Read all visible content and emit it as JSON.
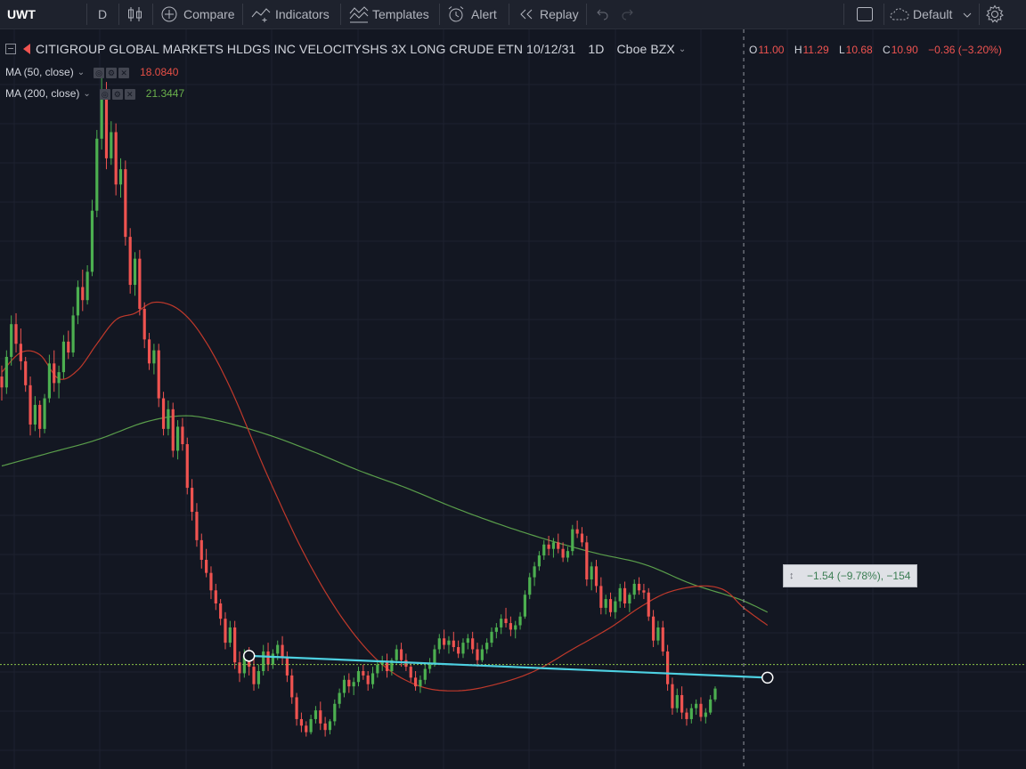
{
  "toolbar": {
    "symbol": "UWT",
    "interval": "D",
    "compare": "Compare",
    "indicators": "Indicators",
    "templates": "Templates",
    "alert": "Alert",
    "replay": "Replay",
    "layout_name": "Default"
  },
  "legend": {
    "title": "CITIGROUP GLOBAL MARKETS HLDGS INC VELOCITYSHS 3X LONG CRUDE ETN 10/12/31",
    "interval": "1D",
    "exchange": "Cboe BZX",
    "ohlc": {
      "o_label": "O",
      "o": "11.00",
      "h_label": "H",
      "h": "11.29",
      "l_label": "L",
      "l": "10.68",
      "c_label": "C",
      "c": "10.90",
      "change": "−0.36 (−3.20%)"
    },
    "ma50": {
      "label": "MA (50, close)",
      "value": "18.0840",
      "color": "#e84f46"
    },
    "ma200": {
      "label": "MA (200, close)",
      "value": "21.3447",
      "color": "#6ab04c"
    }
  },
  "measure": {
    "text": "−1.54 (−9.78%), −154"
  },
  "colors": {
    "up": "#26a69a",
    "up_bright": "#4caf50",
    "down": "#ef5350",
    "trendline": "#4dd0e1",
    "ma50": "#c0392b",
    "ma200": "#5a9e4b",
    "background": "#131722",
    "grid": "#1e2230"
  },
  "chart_data": {
    "type": "candlestick",
    "price_range": [
      7.5,
      38.5
    ],
    "current_price": 10.9,
    "candles": [
      [
        24.1,
        24.6,
        23.0,
        23.6
      ],
      [
        23.6,
        25.3,
        23.3,
        25.0
      ],
      [
        25.0,
        26.9,
        24.6,
        26.5
      ],
      [
        26.5,
        27.0,
        25.2,
        25.6
      ],
      [
        25.6,
        26.3,
        24.4,
        24.8
      ],
      [
        24.8,
        25.0,
        23.4,
        23.7
      ],
      [
        23.7,
        24.1,
        21.4,
        21.9
      ],
      [
        21.9,
        23.2,
        21.6,
        22.8
      ],
      [
        22.8,
        23.0,
        21.3,
        21.7
      ],
      [
        21.7,
        23.3,
        21.5,
        23.1
      ],
      [
        23.1,
        25.1,
        22.9,
        24.7
      ],
      [
        24.7,
        25.3,
        23.4,
        23.8
      ],
      [
        23.8,
        24.6,
        23.1,
        24.3
      ],
      [
        24.3,
        26.0,
        24.0,
        25.7
      ],
      [
        25.7,
        26.2,
        24.9,
        25.2
      ],
      [
        25.2,
        27.3,
        25.0,
        26.9
      ],
      [
        26.9,
        28.5,
        26.5,
        28.2
      ],
      [
        28.2,
        29.0,
        27.1,
        27.6
      ],
      [
        27.6,
        29.2,
        27.4,
        28.9
      ],
      [
        28.9,
        32.2,
        28.7,
        31.7
      ],
      [
        31.7,
        35.4,
        31.4,
        35.0
      ],
      [
        35.0,
        38.0,
        34.5,
        37.2
      ],
      [
        37.2,
        37.6,
        33.6,
        34.1
      ],
      [
        34.1,
        35.8,
        33.8,
        35.3
      ],
      [
        35.3,
        35.7,
        32.4,
        32.9
      ],
      [
        32.9,
        34.1,
        32.3,
        33.6
      ],
      [
        33.6,
        34.0,
        30.1,
        30.5
      ],
      [
        30.5,
        30.9,
        27.9,
        28.3
      ],
      [
        28.3,
        29.8,
        27.8,
        29.5
      ],
      [
        29.5,
        29.9,
        26.9,
        27.2
      ],
      [
        27.2,
        27.5,
        25.4,
        25.8
      ],
      [
        25.8,
        26.1,
        24.4,
        24.7
      ],
      [
        24.7,
        25.6,
        24.2,
        25.3
      ],
      [
        25.3,
        25.6,
        22.7,
        23.1
      ],
      [
        23.1,
        23.4,
        21.4,
        21.7
      ],
      [
        21.7,
        23.0,
        21.4,
        22.6
      ],
      [
        22.6,
        22.9,
        20.4,
        20.7
      ],
      [
        20.7,
        22.1,
        20.3,
        21.8
      ],
      [
        21.8,
        22.2,
        20.7,
        21.0
      ],
      [
        21.0,
        21.3,
        18.7,
        19.0
      ],
      [
        19.0,
        19.4,
        17.5,
        17.9
      ],
      [
        17.9,
        18.3,
        16.3,
        16.6
      ],
      [
        16.6,
        16.9,
        15.3,
        15.7
      ],
      [
        15.7,
        16.2,
        14.9,
        15.1
      ],
      [
        15.1,
        15.4,
        13.9,
        14.3
      ],
      [
        14.3,
        14.6,
        13.4,
        13.7
      ],
      [
        13.7,
        13.9,
        12.7,
        13.0
      ],
      [
        13.0,
        13.3,
        11.6,
        11.9
      ],
      [
        11.9,
        12.9,
        11.7,
        12.6
      ],
      [
        12.6,
        12.9,
        10.7,
        11.0
      ],
      [
        11.0,
        11.5,
        10.1,
        10.5
      ],
      [
        10.5,
        11.6,
        10.3,
        11.3
      ],
      [
        11.3,
        11.7,
        10.4,
        10.8
      ],
      [
        10.8,
        11.2,
        9.7,
        10.0
      ],
      [
        10.0,
        10.9,
        9.8,
        10.6
      ],
      [
        10.6,
        11.8,
        10.4,
        11.5
      ],
      [
        11.5,
        11.9,
        10.6,
        10.9
      ],
      [
        10.9,
        11.6,
        10.7,
        11.4
      ],
      [
        11.4,
        12.0,
        11.1,
        11.8
      ],
      [
        11.8,
        12.2,
        10.9,
        11.2
      ],
      [
        11.2,
        11.5,
        10.1,
        10.4
      ],
      [
        10.4,
        10.7,
        9.1,
        9.4
      ],
      [
        9.4,
        9.6,
        8.1,
        8.4
      ],
      [
        8.4,
        8.7,
        7.8,
        8.1
      ],
      [
        8.1,
        8.3,
        7.6,
        7.8
      ],
      [
        7.8,
        8.6,
        7.7,
        8.4
      ],
      [
        8.4,
        9.0,
        8.2,
        8.8
      ],
      [
        8.8,
        9.2,
        7.9,
        8.2
      ],
      [
        8.2,
        8.5,
        7.6,
        7.9
      ],
      [
        7.9,
        8.4,
        7.7,
        8.3
      ],
      [
        8.3,
        9.3,
        8.1,
        9.1
      ],
      [
        9.1,
        9.8,
        8.9,
        9.6
      ],
      [
        9.6,
        10.4,
        9.4,
        10.2
      ],
      [
        10.2,
        10.5,
        9.6,
        9.9
      ],
      [
        9.9,
        10.3,
        9.5,
        10.1
      ],
      [
        10.1,
        10.8,
        9.9,
        10.6
      ],
      [
        10.6,
        10.9,
        10.2,
        10.4
      ],
      [
        10.4,
        10.6,
        9.7,
        10.0
      ],
      [
        10.0,
        10.8,
        9.8,
        10.5
      ],
      [
        10.5,
        11.1,
        10.3,
        10.9
      ],
      [
        10.9,
        11.3,
        10.6,
        11.0
      ],
      [
        11.0,
        11.4,
        10.3,
        10.6
      ],
      [
        10.6,
        11.2,
        10.4,
        11.1
      ],
      [
        11.1,
        11.8,
        10.9,
        11.6
      ],
      [
        11.6,
        11.9,
        10.8,
        11.1
      ],
      [
        11.1,
        11.4,
        10.6,
        10.8
      ],
      [
        10.8,
        11.0,
        10.1,
        10.3
      ],
      [
        10.3,
        10.6,
        9.7,
        9.9
      ],
      [
        9.9,
        10.4,
        9.6,
        10.2
      ],
      [
        10.2,
        10.9,
        10.0,
        10.7
      ],
      [
        10.7,
        11.2,
        10.5,
        10.9
      ],
      [
        10.9,
        11.8,
        10.8,
        11.6
      ],
      [
        11.6,
        12.3,
        11.4,
        12.1
      ],
      [
        12.1,
        12.5,
        11.6,
        11.8
      ],
      [
        11.8,
        12.2,
        11.4,
        12.0
      ],
      [
        12.0,
        12.4,
        11.5,
        11.7
      ],
      [
        11.7,
        12.0,
        11.2,
        11.4
      ],
      [
        11.4,
        12.1,
        11.2,
        11.9
      ],
      [
        11.9,
        12.3,
        11.6,
        12.1
      ],
      [
        12.1,
        12.4,
        11.4,
        11.6
      ],
      [
        11.6,
        11.9,
        10.8,
        11.1
      ],
      [
        11.1,
        11.8,
        11.0,
        11.6
      ],
      [
        11.6,
        12.1,
        11.4,
        11.9
      ],
      [
        11.9,
        12.6,
        11.7,
        12.4
      ],
      [
        12.4,
        12.8,
        12.1,
        12.6
      ],
      [
        12.6,
        13.2,
        12.3,
        13.0
      ],
      [
        13.0,
        13.5,
        12.6,
        12.8
      ],
      [
        12.8,
        13.1,
        12.2,
        12.5
      ],
      [
        12.5,
        12.9,
        12.1,
        12.7
      ],
      [
        12.7,
        13.3,
        12.5,
        13.1
      ],
      [
        13.1,
        14.3,
        13.0,
        14.1
      ],
      [
        14.1,
        15.1,
        13.9,
        14.9
      ],
      [
        14.9,
        15.6,
        14.5,
        15.4
      ],
      [
        15.4,
        16.1,
        15.2,
        15.9
      ],
      [
        15.9,
        16.6,
        15.7,
        16.4
      ],
      [
        16.4,
        16.8,
        15.9,
        16.2
      ],
      [
        16.2,
        16.7,
        15.8,
        16.5
      ],
      [
        16.5,
        16.9,
        16.0,
        16.2
      ],
      [
        16.2,
        16.5,
        15.6,
        15.8
      ],
      [
        15.8,
        16.3,
        15.6,
        16.1
      ],
      [
        16.1,
        17.3,
        15.9,
        17.1
      ],
      [
        17.1,
        17.5,
        16.7,
        16.9
      ],
      [
        16.9,
        17.2,
        16.3,
        16.5
      ],
      [
        16.5,
        16.8,
        14.5,
        14.8
      ],
      [
        14.8,
        15.6,
        14.3,
        15.4
      ],
      [
        15.4,
        15.7,
        14.2,
        14.5
      ],
      [
        14.5,
        14.9,
        13.2,
        13.5
      ],
      [
        13.5,
        14.1,
        13.2,
        13.9
      ],
      [
        13.9,
        14.2,
        13.1,
        13.3
      ],
      [
        13.3,
        14.0,
        13.0,
        13.8
      ],
      [
        13.8,
        14.6,
        13.5,
        14.4
      ],
      [
        14.4,
        14.7,
        13.5,
        13.7
      ],
      [
        13.7,
        14.2,
        13.3,
        14.1
      ],
      [
        14.1,
        14.8,
        13.9,
        14.6
      ],
      [
        14.6,
        14.9,
        14.1,
        14.3
      ],
      [
        14.3,
        14.6,
        13.9,
        14.2
      ],
      [
        14.2,
        14.4,
        12.9,
        13.1
      ],
      [
        13.1,
        13.4,
        11.7,
        12.0
      ],
      [
        12.0,
        12.9,
        11.8,
        12.6
      ],
      [
        12.6,
        12.9,
        11.3,
        11.5
      ],
      [
        11.5,
        11.8,
        9.7,
        10.0
      ],
      [
        10.0,
        10.3,
        8.6,
        8.9
      ],
      [
        8.9,
        9.8,
        8.7,
        9.5
      ],
      [
        9.5,
        9.9,
        8.4,
        8.7
      ],
      [
        8.7,
        8.9,
        8.1,
        8.4
      ],
      [
        8.4,
        9.1,
        8.2,
        8.9
      ],
      [
        8.9,
        9.3,
        8.6,
        9.1
      ],
      [
        9.1,
        9.4,
        8.3,
        8.5
      ],
      [
        8.5,
        8.9,
        8.2,
        8.7
      ],
      [
        8.7,
        9.5,
        8.6,
        9.3
      ],
      [
        9.3,
        9.9,
        9.2,
        9.8
      ]
    ],
    "ma50": [
      [
        0,
        24.3
      ],
      [
        4,
        25.2
      ],
      [
        8,
        25.1
      ],
      [
        12,
        24.0
      ],
      [
        16,
        24.4
      ],
      [
        20,
        25.6
      ],
      [
        24,
        26.7
      ],
      [
        28,
        27.0
      ],
      [
        32,
        27.5
      ],
      [
        37,
        27.2
      ],
      [
        42,
        26.0
      ],
      [
        48,
        23.6
      ],
      [
        56,
        19.5
      ],
      [
        64,
        15.8
      ],
      [
        72,
        12.9
      ],
      [
        80,
        10.9
      ],
      [
        88,
        9.9
      ],
      [
        96,
        9.7
      ],
      [
        104,
        10.0
      ],
      [
        112,
        10.6
      ],
      [
        120,
        11.6
      ],
      [
        128,
        12.6
      ],
      [
        134,
        13.5
      ],
      [
        140,
        14.2
      ],
      [
        147,
        14.5
      ],
      [
        152,
        14.3
      ],
      [
        156,
        13.5
      ],
      [
        161,
        12.7
      ]
    ],
    "ma200": [
      [
        0,
        20.0
      ],
      [
        10,
        20.6
      ],
      [
        20,
        21.2
      ],
      [
        30,
        22.0
      ],
      [
        38,
        22.3
      ],
      [
        45,
        22.1
      ],
      [
        55,
        21.5
      ],
      [
        65,
        20.7
      ],
      [
        75,
        19.8
      ],
      [
        85,
        19.0
      ],
      [
        95,
        18.1
      ],
      [
        105,
        17.3
      ],
      [
        115,
        16.6
      ],
      [
        125,
        16.0
      ],
      [
        135,
        15.5
      ],
      [
        145,
        14.6
      ],
      [
        155,
        13.9
      ],
      [
        161,
        13.3
      ]
    ],
    "trendline": {
      "from": [
        52,
        11.3
      ],
      "to": [
        161,
        10.3
      ]
    },
    "crosshair": {
      "bar": 156,
      "price": 10.12
    }
  }
}
